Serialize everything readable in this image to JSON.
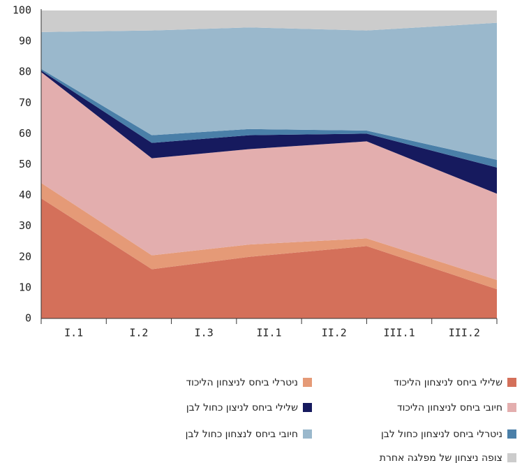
{
  "chart_data": {
    "type": "stacked_area",
    "categories": [
      "I.1",
      "I.2",
      "I.3",
      "II.1",
      "II.2",
      "III.1",
      "III.2"
    ],
    "x": [
      0,
      1.7,
      3.2,
      5.0,
      7
    ],
    "xlim": [
      0,
      7
    ],
    "ylim": [
      0,
      100
    ],
    "yticks": [
      0,
      10,
      20,
      30,
      40,
      50,
      60,
      70,
      80,
      90,
      100
    ],
    "series": [
      {
        "name": "שלילי ביחס לניצחון הליכוד",
        "color": "#d4705a",
        "values": [
          39,
          16,
          20,
          23.5,
          9.5
        ]
      },
      {
        "name": "ניטרלי ביחס לניצחון הליכוד",
        "color": "#e59a77",
        "values": [
          5,
          4.5,
          4,
          2.5,
          3
        ]
      },
      {
        "name": "חיובי ביחס לניצחון הליכוד",
        "color": "#e3aeae",
        "values": [
          36,
          31.5,
          31,
          31.5,
          28
        ]
      },
      {
        "name": "שלילי ביחס לניצון כחול לבן",
        "color": "#161a5e",
        "values": [
          0.5,
          5,
          4.5,
          2.5,
          8.5
        ]
      },
      {
        "name": "ניטרלי ביחס לניצחון כחול לבן",
        "color": "#4a7fa8",
        "values": [
          0.5,
          2.5,
          2,
          1,
          2.5
        ]
      },
      {
        "name": "חיובי ביחס לנצחון כחול לבן",
        "color": "#9ab8cc",
        "values": [
          12,
          34,
          33,
          32.5,
          44.5
        ]
      },
      {
        "name": "צופה ניצחון של מפלגה אחרת",
        "color": "#cccccc",
        "values": [
          7,
          6.5,
          5.5,
          6.5,
          4
        ]
      }
    ],
    "legend": "bottom"
  }
}
